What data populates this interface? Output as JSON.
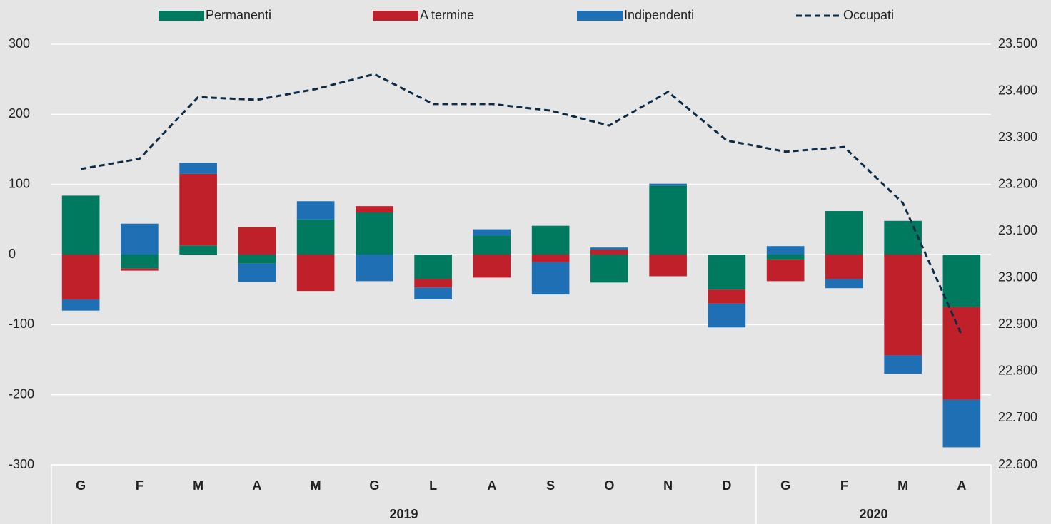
{
  "chart_data": {
    "type": "bar",
    "stacked": true,
    "groups": [
      {
        "name": "2019",
        "categories": [
          "G",
          "F",
          "M",
          "A",
          "M",
          "G",
          "L",
          "A",
          "S",
          "O",
          "N",
          "D"
        ]
      },
      {
        "name": "2020",
        "categories": [
          "G",
          "F",
          "M",
          "A"
        ]
      }
    ],
    "series": [
      {
        "name": "Permanenti",
        "type": "bar",
        "color": "#007a5e",
        "values": [
          84,
          -20,
          13,
          -13,
          50,
          60,
          -35,
          27,
          41,
          -40,
          98,
          -50,
          -7,
          62,
          48,
          -75
        ]
      },
      {
        "name": "A termine",
        "type": "bar",
        "color": "#c0202a",
        "values": [
          -64,
          -3,
          102,
          39,
          -52,
          9,
          -12,
          -33,
          -11,
          7,
          -31,
          -20,
          -31,
          -35,
          -144,
          -132
        ]
      },
      {
        "name": "Indipendenti",
        "type": "bar",
        "color": "#1f6fb5",
        "values": [
          -16,
          44,
          16,
          -26,
          26,
          -38,
          -17,
          9,
          -46,
          3,
          3,
          -34,
          12,
          -13,
          -26,
          -68
        ]
      },
      {
        "name": "Occupati",
        "type": "line",
        "axis": "y2",
        "color": "#0d2b45",
        "dashed": true,
        "values": [
          23233,
          23255,
          23387,
          23381,
          23404,
          23436,
          23372,
          23372,
          23358,
          23326,
          23398,
          23294,
          23270,
          23280,
          23160,
          22878
        ]
      }
    ],
    "ylim": [
      -300,
      300
    ],
    "yticks": [
      -300,
      -200,
      -100,
      0,
      100,
      200,
      300
    ],
    "y2lim": [
      22600,
      23500
    ],
    "y2ticks": [
      {
        "value": 22600,
        "label": "22.600"
      },
      {
        "value": 22700,
        "label": "22.700"
      },
      {
        "value": 22800,
        "label": "22.800"
      },
      {
        "value": 22900,
        "label": "22.900"
      },
      {
        "value": 23000,
        "label": "23.000"
      },
      {
        "value": 23100,
        "label": "23.100"
      },
      {
        "value": 23200,
        "label": "23.200"
      },
      {
        "value": 23300,
        "label": "23.300"
      },
      {
        "value": 23400,
        "label": "23.400"
      },
      {
        "value": 23500,
        "label": "23.500"
      }
    ],
    "grid": true,
    "legend": "top"
  }
}
